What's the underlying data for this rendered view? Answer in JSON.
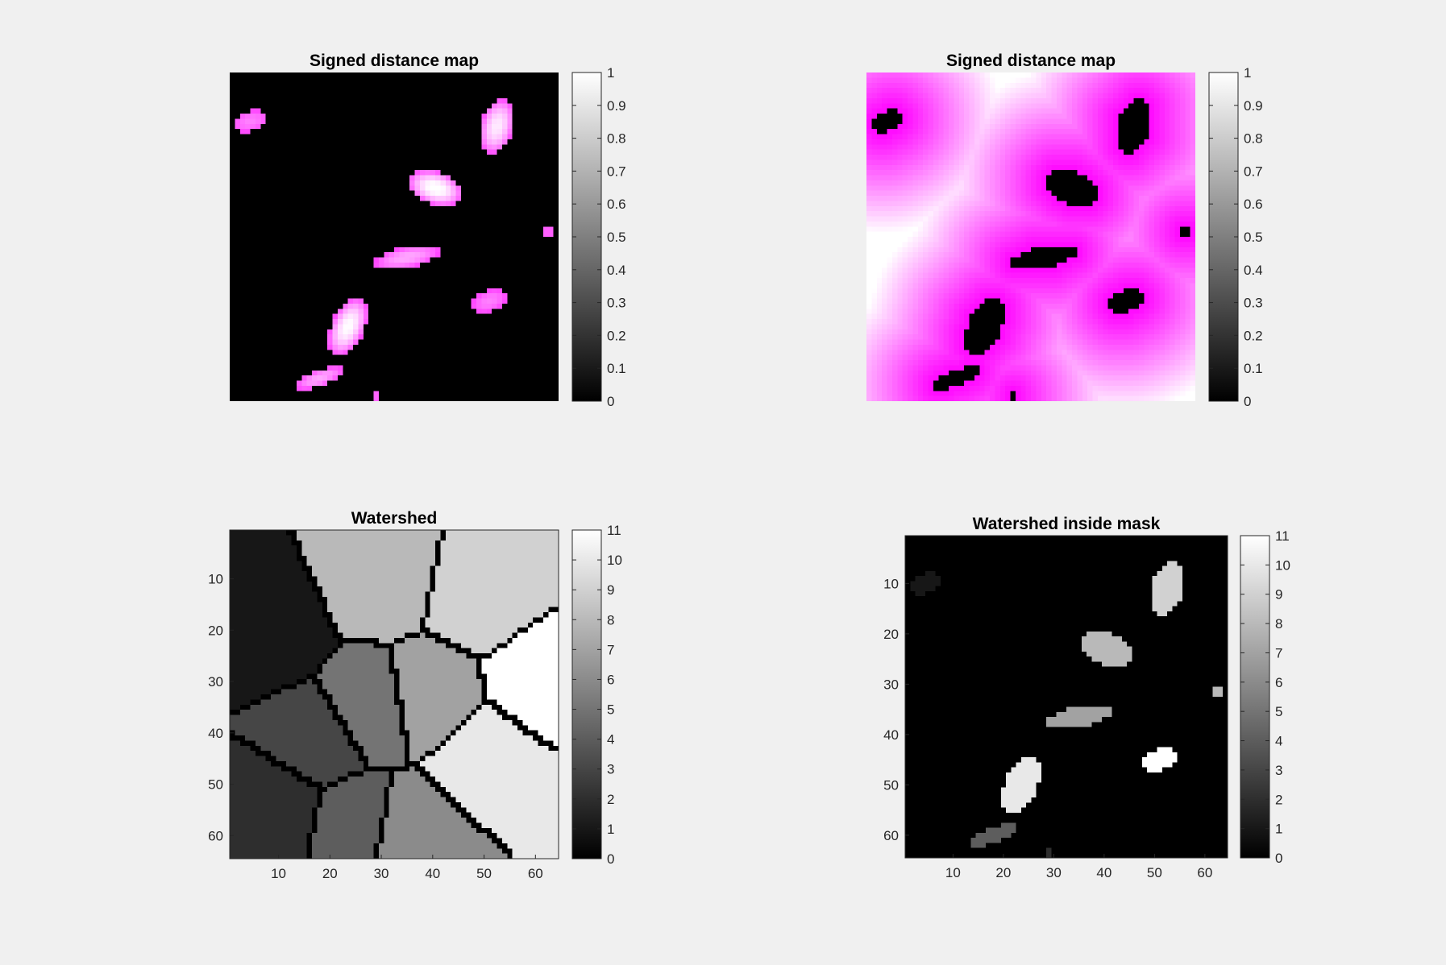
{
  "figure": {
    "background": "#f0f0f0"
  },
  "chart_data": [
    {
      "id": "tl",
      "type": "heatmap",
      "title": "Signed distance map",
      "colormap": "magenta-to-white on black background",
      "accent_color": "#ff33ff",
      "axes_visible": false,
      "grid_size": [
        64,
        64
      ],
      "colorbar": {
        "ticks": [
          "1",
          "0.9",
          "0.8",
          "0.7",
          "0.6",
          "0.5",
          "0.4",
          "0.3",
          "0.2",
          "0.1",
          "0"
        ],
        "range": [
          0,
          1
        ]
      },
      "blobs": [
        {
          "cx": 4.5,
          "cy": 10,
          "rx": 3.5,
          "ry": 2,
          "angle": -15,
          "peak": 0.3
        },
        {
          "cx": 52.5,
          "cy": 11,
          "rx": 3.2,
          "ry": 5.5,
          "angle": 15,
          "peak": 0.85
        },
        {
          "cx": 40.5,
          "cy": 23,
          "rx": 5.5,
          "ry": 3.2,
          "angle": 18,
          "peak": 1.0
        },
        {
          "cx": 35,
          "cy": 36.5,
          "rx": 6.5,
          "ry": 2,
          "angle": -12,
          "peak": 0.5
        },
        {
          "cx": 62.5,
          "cy": 31.5,
          "rx": 1.5,
          "ry": 1,
          "angle": 0,
          "peak": 0.2
        },
        {
          "cx": 51,
          "cy": 45,
          "rx": 3.5,
          "ry": 2,
          "angle": -20,
          "peak": 0.3
        },
        {
          "cx": 23.5,
          "cy": 50,
          "rx": 3.2,
          "ry": 6,
          "angle": 25,
          "peak": 0.95
        },
        {
          "cx": 18,
          "cy": 60,
          "rx": 5,
          "ry": 1.6,
          "angle": -20,
          "peak": 0.5
        },
        {
          "cx": 29,
          "cy": 63.5,
          "rx": 1,
          "ry": 1,
          "angle": 0,
          "peak": 0.2
        }
      ]
    },
    {
      "id": "tr",
      "type": "heatmap",
      "title": "Signed distance map",
      "colormap": "white (far) to magenta (near) outside mask, black inside mask",
      "accent_color": "#ff00ff",
      "axes_visible": false,
      "grid_size": [
        64,
        64
      ],
      "colorbar": {
        "ticks": [
          "1",
          "0.9",
          "0.8",
          "0.7",
          "0.6",
          "0.5",
          "0.4",
          "0.3",
          "0.2",
          "0.1",
          "0"
        ],
        "range": [
          0,
          1
        ]
      }
    },
    {
      "id": "bl",
      "type": "heatmap",
      "title": "Watershed",
      "colormap": "gray",
      "axes_visible": true,
      "grid_size": [
        64,
        64
      ],
      "xticks": [
        "10",
        "20",
        "30",
        "40",
        "50",
        "60"
      ],
      "yticks": [
        "10",
        "20",
        "30",
        "40",
        "50",
        "60"
      ],
      "colorbar": {
        "ticks": [
          "11",
          "10",
          "9",
          "8",
          "7",
          "6",
          "5",
          "4",
          "3",
          "2",
          "1",
          "0"
        ],
        "range": [
          0,
          11
        ]
      },
      "regions": [
        {
          "label": 1,
          "seed": [
            8,
            20
          ]
        },
        {
          "label": 2,
          "seed": [
            10,
            55
          ]
        },
        {
          "label": 3,
          "seed": [
            18,
            42
          ]
        },
        {
          "label": 4,
          "seed": [
            25,
            58
          ]
        },
        {
          "label": 5,
          "seed": [
            28,
            36
          ]
        },
        {
          "label": 6,
          "seed": [
            36,
            60
          ]
        },
        {
          "label": 7,
          "seed": [
            40,
            34
          ]
        },
        {
          "label": 8,
          "seed": [
            30,
            10
          ]
        },
        {
          "label": 9,
          "seed": [
            50,
            14
          ]
        },
        {
          "label": 10,
          "seed": [
            50,
            45
          ]
        },
        {
          "label": 11,
          "seed": [
            61,
            30
          ]
        }
      ]
    },
    {
      "id": "br",
      "type": "heatmap",
      "title": "Watershed inside mask",
      "colormap": "gray",
      "axes_visible": true,
      "grid_size": [
        64,
        64
      ],
      "xticks": [
        "10",
        "20",
        "30",
        "40",
        "50",
        "60"
      ],
      "yticks": [
        "10",
        "20",
        "30",
        "40",
        "50",
        "60"
      ],
      "colorbar": {
        "ticks": [
          "11",
          "10",
          "9",
          "8",
          "7",
          "6",
          "5",
          "4",
          "3",
          "2",
          "1",
          "0"
        ],
        "range": [
          0,
          11
        ]
      },
      "blob_labels": [
        1,
        9,
        8,
        7,
        8,
        11,
        10,
        4,
        2,
        5,
        3
      ]
    }
  ]
}
